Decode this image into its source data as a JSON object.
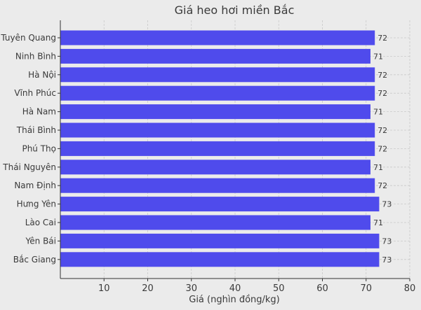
{
  "chart_data": {
    "type": "bar",
    "orientation": "horizontal",
    "title": "Giá heo hơi miền Bắc",
    "xlabel": "Giá (nghìn đồng/kg)",
    "ylabel": "",
    "categories": [
      "Tuyên Quang",
      "Ninh Bình",
      "Hà Nội",
      "Vĩnh Phúc",
      "Hà Nam",
      "Thái Bình",
      "Phú Thọ",
      "Thái Nguyên",
      "Nam Định",
      "Hưng Yên",
      "Lào Cai",
      "Yên Bái",
      "Bắc Giang"
    ],
    "values": [
      72,
      71,
      72,
      72,
      71,
      72,
      72,
      71,
      72,
      73,
      71,
      73,
      73
    ],
    "value_labels": [
      "72",
      "71",
      "72",
      "72",
      "71",
      "72",
      "72",
      "71",
      "72",
      "73",
      "71",
      "73",
      "73"
    ],
    "xlim": [
      0,
      80
    ],
    "xticks": [
      10,
      20,
      30,
      40,
      50,
      60,
      70,
      80
    ],
    "xtick_labels": [
      "10",
      "20",
      "30",
      "40",
      "50",
      "60",
      "70",
      "80"
    ],
    "grid": true,
    "bar_color": "#4f4bec",
    "background_color": "#ebebeb"
  }
}
